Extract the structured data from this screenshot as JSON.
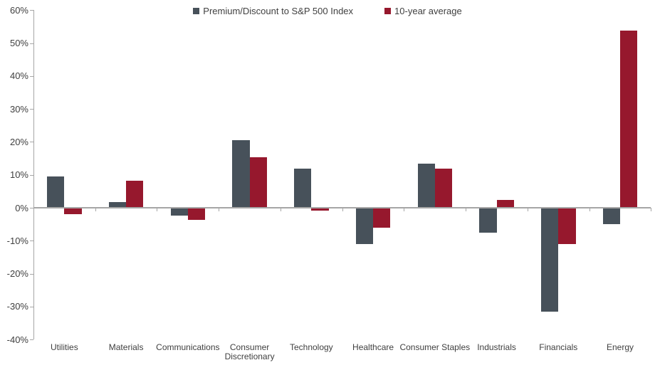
{
  "chart_data": {
    "type": "bar",
    "title": "",
    "categories": [
      "Utilities",
      "Materials",
      "Communications",
      "Consumer Discretionary",
      "Technology",
      "Healthcare",
      "Consumer Staples",
      "Industrials",
      "Financials",
      "Energy"
    ],
    "series": [
      {
        "name": "Premium/Discount to S&P 500 Index",
        "short": "premium-discount",
        "color": "#47515A",
        "values": [
          9.5,
          1.7,
          -2.4,
          20.5,
          11.8,
          -11.1,
          13.3,
          -7.6,
          -31.5,
          -5.0
        ]
      },
      {
        "name": "10-year average",
        "short": "10yr-average",
        "color": "#96182D",
        "values": [
          -1.9,
          8.2,
          -3.7,
          15.4,
          -0.9,
          -6.0,
          11.9,
          2.3,
          -11.0,
          53.8
        ]
      }
    ],
    "ylim": [
      -40,
      60
    ],
    "ytick_step": 10,
    "ytick_labels": [
      "60%",
      "50%",
      "40%",
      "30%",
      "20%",
      "10%",
      "0%",
      "-10%",
      "-20%",
      "-30%",
      "-40%"
    ],
    "unit": "percent",
    "legend_position": "top-center",
    "grid": false,
    "axis_color": "#a6a6a6",
    "text_color": "#404040"
  }
}
